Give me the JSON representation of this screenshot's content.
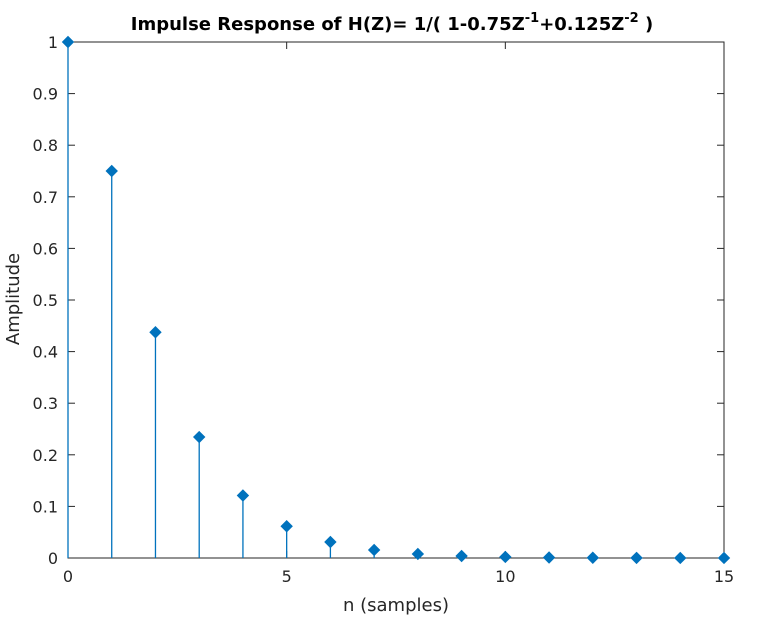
{
  "chart_data": {
    "type": "stem",
    "title": {
      "prefix": "Impulse Response of H(Z)= 1/( 1-0.75Z",
      "sup1": "-1",
      "mid": "+0.125Z",
      "sup2": "-2",
      "suffix": " )"
    },
    "xlabel": "n (samples)",
    "ylabel": "Amplitude",
    "xlim": [
      0,
      15
    ],
    "ylim": [
      0,
      1
    ],
    "xticks": [
      0,
      5,
      10,
      15
    ],
    "xtick_labels": [
      "0",
      "5",
      "10",
      "15"
    ],
    "yticks": [
      0,
      0.1,
      0.2,
      0.3,
      0.4,
      0.5,
      0.6,
      0.7,
      0.8,
      0.9,
      1
    ],
    "ytick_labels": [
      "0",
      "0.1",
      "0.2",
      "0.3",
      "0.4",
      "0.5",
      "0.6",
      "0.7",
      "0.8",
      "0.9",
      "1"
    ],
    "grid": false,
    "series": [
      {
        "x": [
          0,
          1,
          2,
          3,
          4,
          5,
          6,
          7,
          8,
          9,
          10,
          11,
          12,
          13,
          14,
          15
        ],
        "values": [
          1,
          0.75,
          0.4375,
          0.2344,
          0.1211,
          0.0615,
          0.031,
          0.0156,
          0.0078,
          0.0039,
          0.002,
          0.001,
          0.0005,
          0.0002,
          0.0001,
          0.0001
        ],
        "color": "#0072BD"
      }
    ]
  }
}
